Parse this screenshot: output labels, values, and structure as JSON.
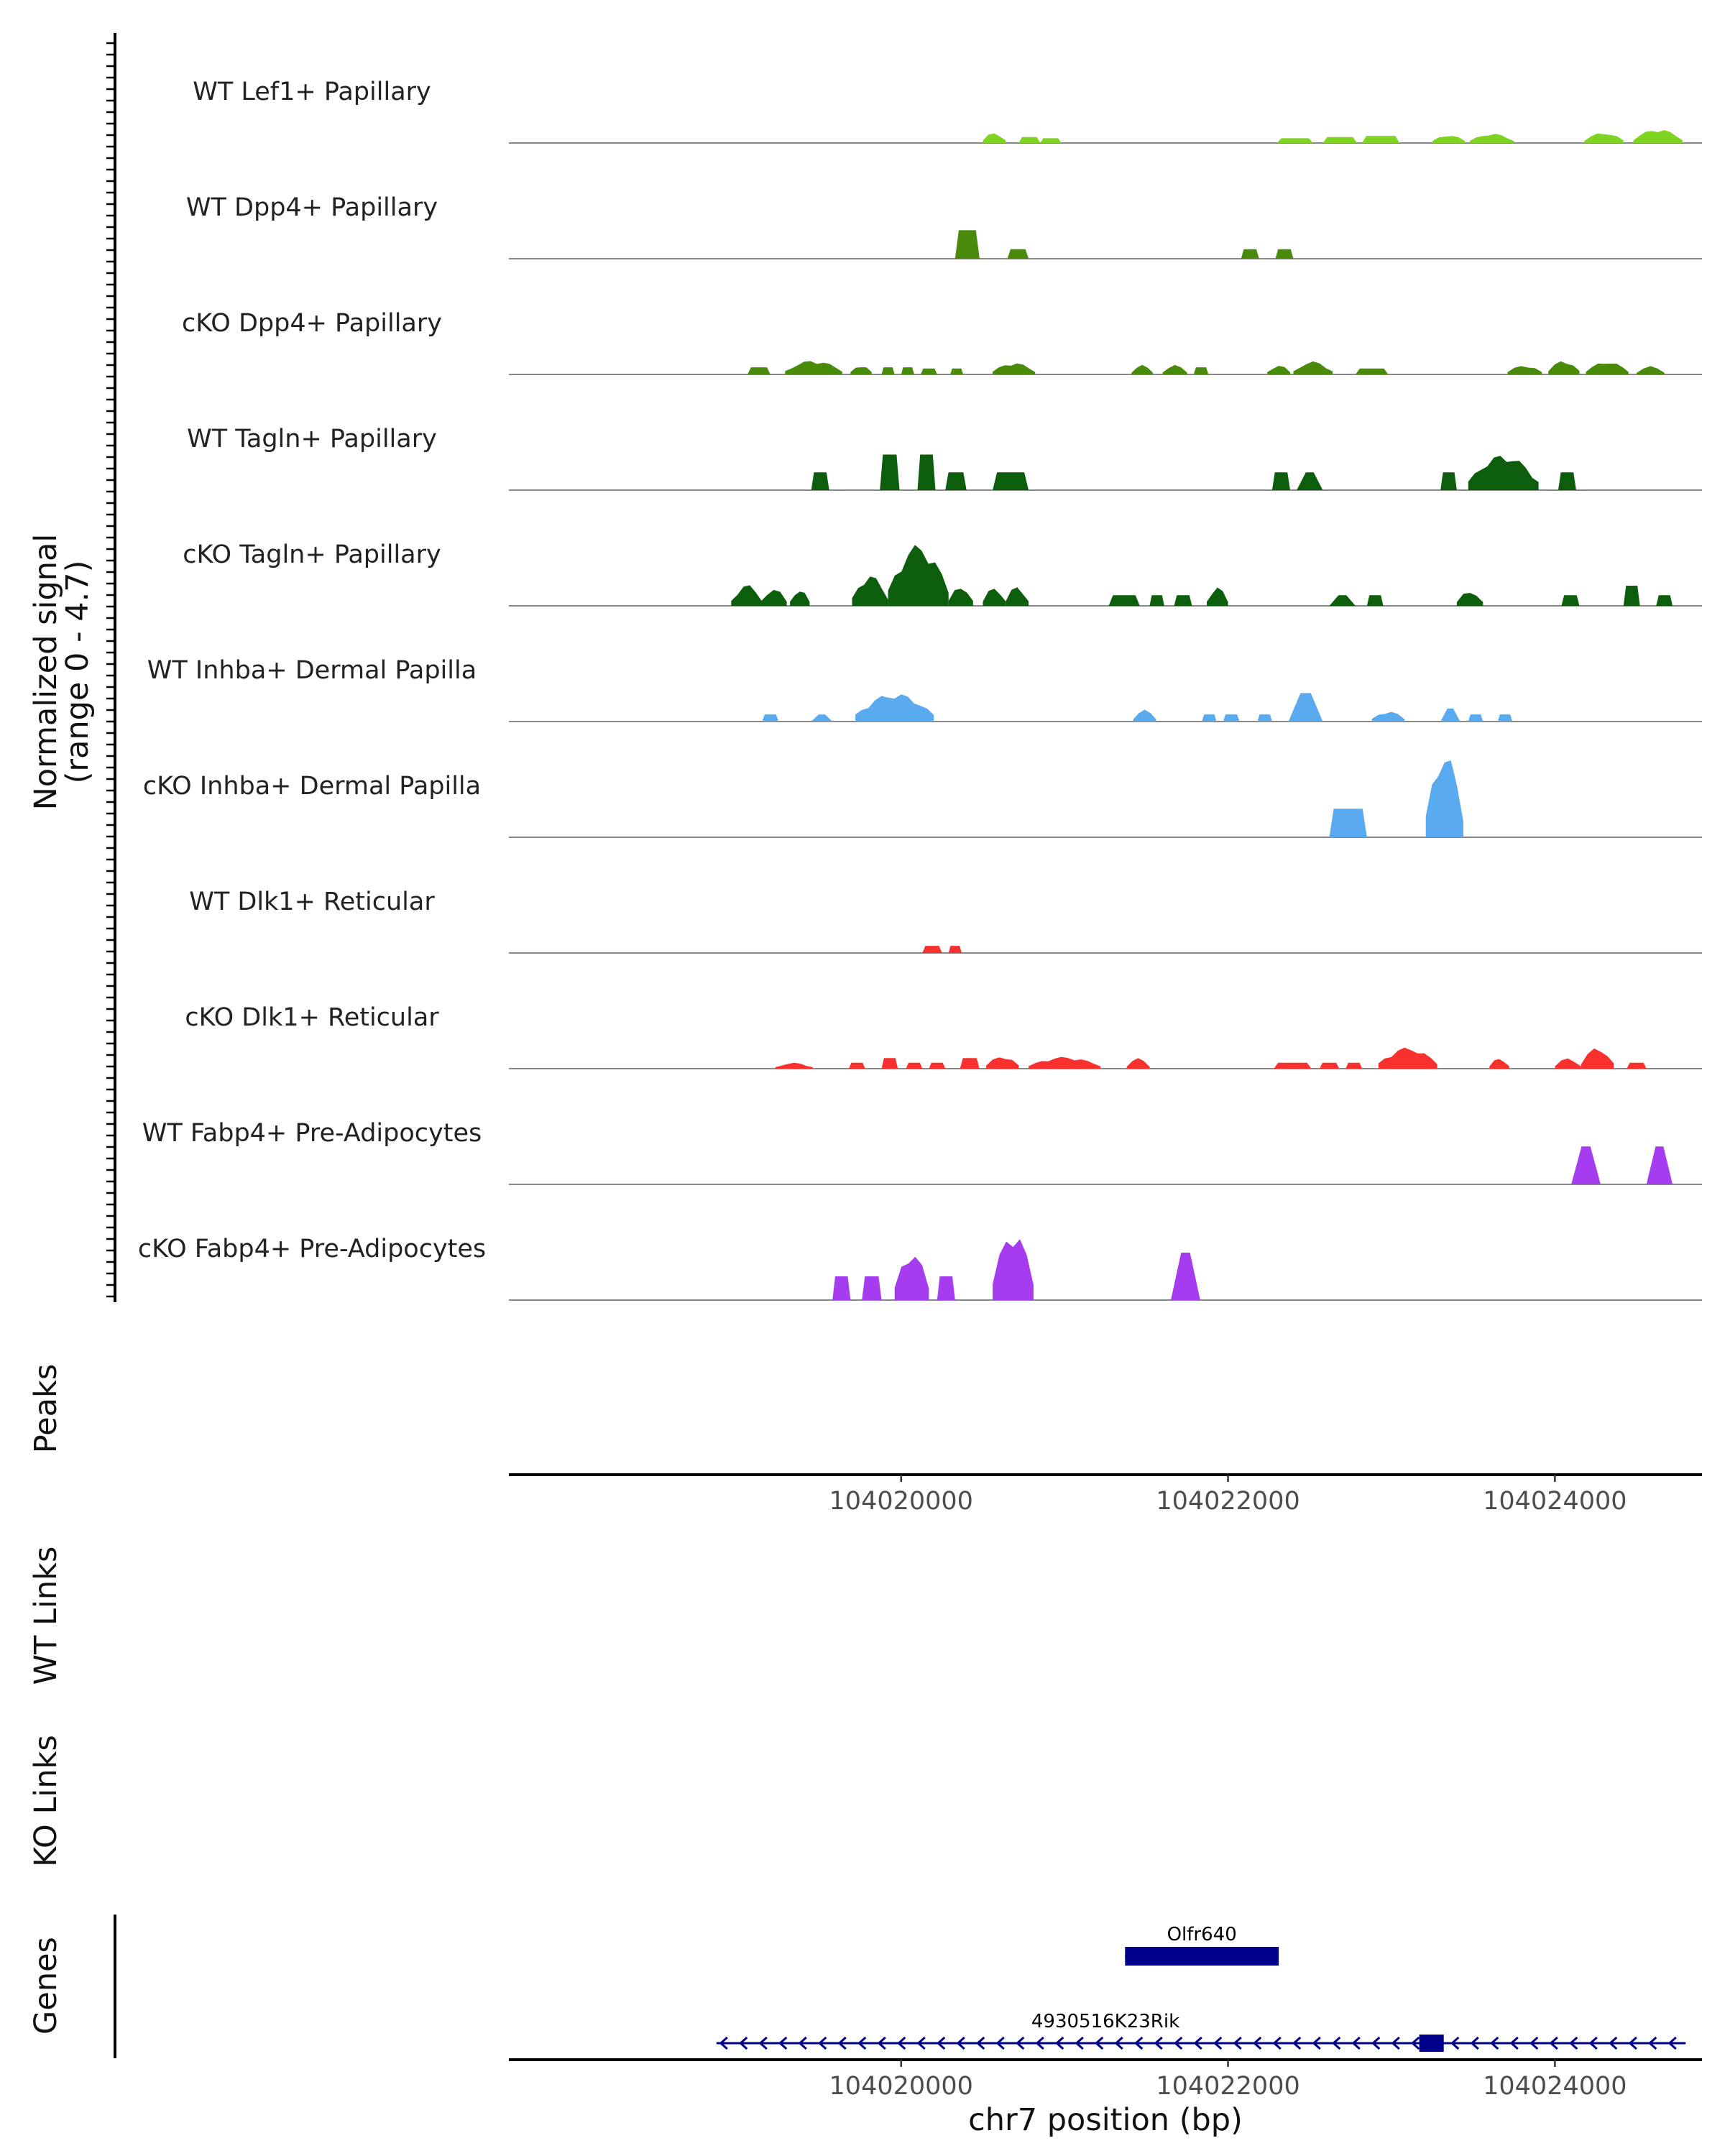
{
  "chart_data": {
    "type": "area",
    "description_title": "Coverage plot",
    "chromosome": "chr7",
    "xlim": [
      104017600,
      104024900
    ],
    "xticks": [
      104020000,
      104022000,
      104024000
    ],
    "xtick_labels": [
      "104020000",
      "104022000",
      "104024000"
    ],
    "xlabel": "chr7 position (bp)",
    "ylabel_line1": "Normalized signal",
    "ylabel_line2": "(range 0 - 4.7)",
    "ylim": [
      0,
      4.7
    ],
    "colors": {
      "lef1": "#7fd321",
      "dpp4": "#4a8a0b",
      "tagln": "#0c5e0c",
      "inhba": "#5aaaf0",
      "dlk1": "#f8312f",
      "fabp4": "#a63cf0",
      "gene": "#00008b"
    },
    "series": [
      {
        "name": "WT Lef1+ Papillary",
        "color": "#7fd321",
        "peaks": [
          [
            104020500,
            104020640,
            0.45,
            "r"
          ],
          [
            104020720,
            104020850,
            0.25,
            "p"
          ],
          [
            104020850,
            104020980,
            0.2,
            "p"
          ],
          [
            104022300,
            104022520,
            0.2,
            "p"
          ],
          [
            104022580,
            104022790,
            0.25,
            "p"
          ],
          [
            104022820,
            104023050,
            0.3,
            "p"
          ],
          [
            104023250,
            104023450,
            0.35,
            "r"
          ],
          [
            104023480,
            104023750,
            0.4,
            "r"
          ],
          [
            104024180,
            104024420,
            0.45,
            "r"
          ],
          [
            104024480,
            104024780,
            0.6,
            "r"
          ]
        ]
      },
      {
        "name": "WT Dpp4+ Papillary",
        "color": "#4a8a0b",
        "peaks": [
          [
            104020330,
            104020480,
            1.2,
            "p"
          ],
          [
            104020650,
            104020780,
            0.4,
            "p"
          ],
          [
            104022080,
            104022190,
            0.4,
            "p"
          ],
          [
            104022290,
            104022400,
            0.4,
            "p"
          ]
        ]
      },
      {
        "name": "cKO Dpp4+ Papillary",
        "color": "#4a8a0b",
        "peaks": [
          [
            104019060,
            104019200,
            0.3,
            "p"
          ],
          [
            104019290,
            104019640,
            0.6,
            "r"
          ],
          [
            104019690,
            104019820,
            0.4,
            "r"
          ],
          [
            104019880,
            104019960,
            0.3,
            "p"
          ],
          [
            104020000,
            104020080,
            0.3,
            "p"
          ],
          [
            104020120,
            104020220,
            0.25,
            "p"
          ],
          [
            104020300,
            104020380,
            0.25,
            "p"
          ],
          [
            104020560,
            104020820,
            0.5,
            "r"
          ],
          [
            104021410,
            104021540,
            0.4,
            "r"
          ],
          [
            104021600,
            104021750,
            0.4,
            "r"
          ],
          [
            104021790,
            104021880,
            0.3,
            "p"
          ],
          [
            104022240,
            104022380,
            0.4,
            "r"
          ],
          [
            104022400,
            104022640,
            0.55,
            "r"
          ],
          [
            104022780,
            104022980,
            0.25,
            "p"
          ],
          [
            104023710,
            104023920,
            0.4,
            "r"
          ],
          [
            104023960,
            104024150,
            0.6,
            "r"
          ],
          [
            104024190,
            104024450,
            0.55,
            "r"
          ],
          [
            104024500,
            104024670,
            0.35,
            "r"
          ]
        ]
      },
      {
        "name": "WT Tagln+ Papillary",
        "color": "#0c5e0c",
        "peaks": [
          [
            104019450,
            104019560,
            0.75,
            "p"
          ],
          [
            104019870,
            104019990,
            1.5,
            "p"
          ],
          [
            104020100,
            104020210,
            1.5,
            "p"
          ],
          [
            104020270,
            104020400,
            0.75,
            "p"
          ],
          [
            104020560,
            104020780,
            0.75,
            "p"
          ],
          [
            104022270,
            104022380,
            0.75,
            "p"
          ],
          [
            104022420,
            104022580,
            0.75,
            "t"
          ],
          [
            104023300,
            104023400,
            0.75,
            "p"
          ],
          [
            104023470,
            104023900,
            1.5,
            "r"
          ],
          [
            104024020,
            104024130,
            0.75,
            "p"
          ]
        ]
      },
      {
        "name": "cKO Tagln+ Papillary",
        "color": "#0c5e0c",
        "peaks": [
          [
            104018960,
            104019150,
            0.9,
            "r"
          ],
          [
            104019140,
            104019300,
            0.75,
            "r"
          ],
          [
            104019320,
            104019440,
            0.7,
            "r"
          ],
          [
            104019700,
            104019920,
            1.3,
            "r"
          ],
          [
            104019920,
            104020290,
            2.6,
            "r"
          ],
          [
            104020290,
            104020440,
            0.85,
            "r"
          ],
          [
            104020500,
            104020640,
            0.8,
            "r"
          ],
          [
            104020640,
            104020780,
            0.85,
            "r"
          ],
          [
            104021270,
            104021460,
            0.45,
            "p"
          ],
          [
            104021520,
            104021610,
            0.45,
            "p"
          ],
          [
            104021670,
            104021780,
            0.45,
            "p"
          ],
          [
            104021870,
            104022000,
            0.8,
            "r"
          ],
          [
            104022620,
            104022780,
            0.45,
            "t"
          ],
          [
            104022850,
            104022950,
            0.45,
            "p"
          ],
          [
            104023400,
            104023560,
            0.65,
            "r"
          ],
          [
            104024040,
            104024150,
            0.45,
            "p"
          ],
          [
            104024420,
            104024520,
            0.85,
            "p"
          ],
          [
            104024620,
            104024720,
            0.45,
            "p"
          ]
        ]
      },
      {
        "name": "WT Inhba+ Dermal Papilla",
        "color": "#5aaaf0",
        "peaks": [
          [
            104019150,
            104019250,
            0.3,
            "p"
          ],
          [
            104019450,
            104019580,
            0.3,
            "t"
          ],
          [
            104019720,
            104020200,
            1.2,
            "r"
          ],
          [
            104021420,
            104021560,
            0.5,
            "r"
          ],
          [
            104021840,
            104021930,
            0.3,
            "p"
          ],
          [
            104021970,
            104022070,
            0.3,
            "p"
          ],
          [
            104022180,
            104022270,
            0.3,
            "p"
          ],
          [
            104022370,
            104022580,
            1.2,
            "t"
          ],
          [
            104022880,
            104023080,
            0.45,
            "r"
          ],
          [
            104023300,
            104023420,
            0.55,
            "t"
          ],
          [
            104023470,
            104023560,
            0.3,
            "p"
          ],
          [
            104023650,
            104023740,
            0.3,
            "p"
          ]
        ]
      },
      {
        "name": "cKO Inhba+ Dermal Papilla",
        "color": "#5aaaf0",
        "peaks": [
          [
            104022620,
            104022850,
            1.2,
            "p"
          ],
          [
            104023210,
            104023440,
            3.6,
            "r"
          ]
        ]
      },
      {
        "name": "WT Dlk1+ Reticular",
        "color": "#f8312f",
        "peaks": [
          [
            104020130,
            104020250,
            0.3,
            "p"
          ],
          [
            104020290,
            104020370,
            0.3,
            "p"
          ]
        ]
      },
      {
        "name": "cKO Dlk1+ Reticular",
        "color": "#f8312f",
        "peaks": [
          [
            104019230,
            104019460,
            0.25,
            "r"
          ],
          [
            104019680,
            104019780,
            0.25,
            "p"
          ],
          [
            104019880,
            104019980,
            0.45,
            "p"
          ],
          [
            104020030,
            104020130,
            0.25,
            "p"
          ],
          [
            104020170,
            104020270,
            0.25,
            "p"
          ],
          [
            104020360,
            104020480,
            0.45,
            "p"
          ],
          [
            104020520,
            104020720,
            0.55,
            "r"
          ],
          [
            104020780,
            104021220,
            0.5,
            "r"
          ],
          [
            104021380,
            104021520,
            0.45,
            "r"
          ],
          [
            104022280,
            104022510,
            0.25,
            "p"
          ],
          [
            104022560,
            104022680,
            0.25,
            "p"
          ],
          [
            104022720,
            104022820,
            0.25,
            "p"
          ],
          [
            104022920,
            104023280,
            0.9,
            "r"
          ],
          [
            104023600,
            104023720,
            0.45,
            "r"
          ],
          [
            104024000,
            104024160,
            0.45,
            "r"
          ],
          [
            104024160,
            104024360,
            0.9,
            "r"
          ],
          [
            104024440,
            104024560,
            0.25,
            "p"
          ]
        ]
      },
      {
        "name": "WT Fabp4+ Pre-Adipocytes",
        "color": "#a63cf0",
        "peaks": [
          [
            104024100,
            104024280,
            1.6,
            "t"
          ],
          [
            104024560,
            104024720,
            1.6,
            "t"
          ]
        ]
      },
      {
        "name": "cKO Fabp4+ Pre-Adipocytes",
        "color": "#a63cf0",
        "peaks": [
          [
            104019580,
            104019690,
            1.0,
            "p"
          ],
          [
            104019760,
            104019880,
            1.0,
            "p"
          ],
          [
            104019960,
            104020170,
            2.1,
            "r"
          ],
          [
            104020220,
            104020330,
            1.0,
            "p"
          ],
          [
            104020560,
            104020810,
            3.0,
            "r"
          ],
          [
            104021650,
            104021830,
            2.0,
            "t"
          ]
        ]
      }
    ],
    "tracks": {
      "peaks_label": "Peaks",
      "wt_links_label": "WT Links",
      "ko_links_label": "KO Links",
      "genes_label": "Genes"
    },
    "genes": [
      {
        "name": "Olfr640",
        "start": 104021370,
        "end": 104022310,
        "row": 1,
        "exons": [
          [
            104021370,
            104022310
          ]
        ]
      },
      {
        "name": "4930516K23Rik",
        "start": 104018870,
        "end": 104024800,
        "row": 2,
        "strand": "-",
        "exons": [
          [
            104023170,
            104023320
          ]
        ]
      }
    ]
  }
}
